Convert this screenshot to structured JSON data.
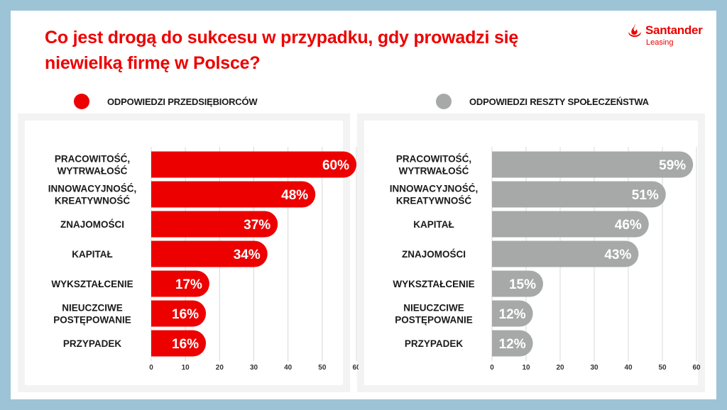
{
  "title": "Co jest drogą do sukcesu w przypadku, gdy prowadzi się niewielką firmę w Polsce?",
  "logo": {
    "name": "Santander",
    "sub": "Leasing"
  },
  "colors": {
    "red": "#ec0000",
    "gray": "#a7a9a9",
    "tick": "#333333",
    "grid": "#d8d8d8"
  },
  "chart_data": [
    {
      "type": "bar",
      "orientation": "horizontal",
      "legend": "ODPOWIEDZI PRZEDSIĘBIORCÓW",
      "color": "#ec0000",
      "categories": [
        [
          "PRACOWITOŚĆ,",
          "WYTRWAŁOŚĆ"
        ],
        [
          "INNOWACYJNOŚĆ,",
          "KREATYWNOŚĆ"
        ],
        [
          "ZNAJOMOŚCI"
        ],
        [
          "KAPITAŁ"
        ],
        [
          "WYKSZTAŁCENIE"
        ],
        [
          "NIEUCZCIWE",
          "POSTĘPOWANIE"
        ],
        [
          "PRZYPADEK"
        ]
      ],
      "values": [
        60,
        48,
        37,
        34,
        17,
        16,
        16
      ],
      "labels": [
        "60%",
        "48%",
        "37%",
        "34%",
        "17%",
        "16%",
        "16%"
      ],
      "xlim": [
        0,
        60
      ],
      "xticks": [
        "0",
        "10",
        "20",
        "30",
        "40",
        "50",
        "60"
      ],
      "grid": true
    },
    {
      "type": "bar",
      "orientation": "horizontal",
      "legend": "ODPOWIEDZI RESZTY SPOŁECZEŃSTWA",
      "color": "#a7a9a9",
      "categories": [
        [
          "PRACOWITOŚĆ,",
          "WYTRWAŁOŚĆ"
        ],
        [
          "INNOWACYJNOŚĆ,",
          "KREATYWNOŚĆ"
        ],
        [
          "KAPITAŁ"
        ],
        [
          "ZNAJOMOŚCI"
        ],
        [
          "WYKSZTAŁCENIE"
        ],
        [
          "NIEUCZCIWE",
          "POSTĘPOWANIE"
        ],
        [
          "PRZYPADEK"
        ]
      ],
      "values": [
        59,
        51,
        46,
        43,
        15,
        12,
        12
      ],
      "labels": [
        "59%",
        "51%",
        "46%",
        "43%",
        "15%",
        "12%",
        "12%"
      ],
      "xlim": [
        0,
        60
      ],
      "xticks": [
        "0",
        "10",
        "20",
        "30",
        "40",
        "50",
        "60"
      ],
      "grid": true
    }
  ]
}
